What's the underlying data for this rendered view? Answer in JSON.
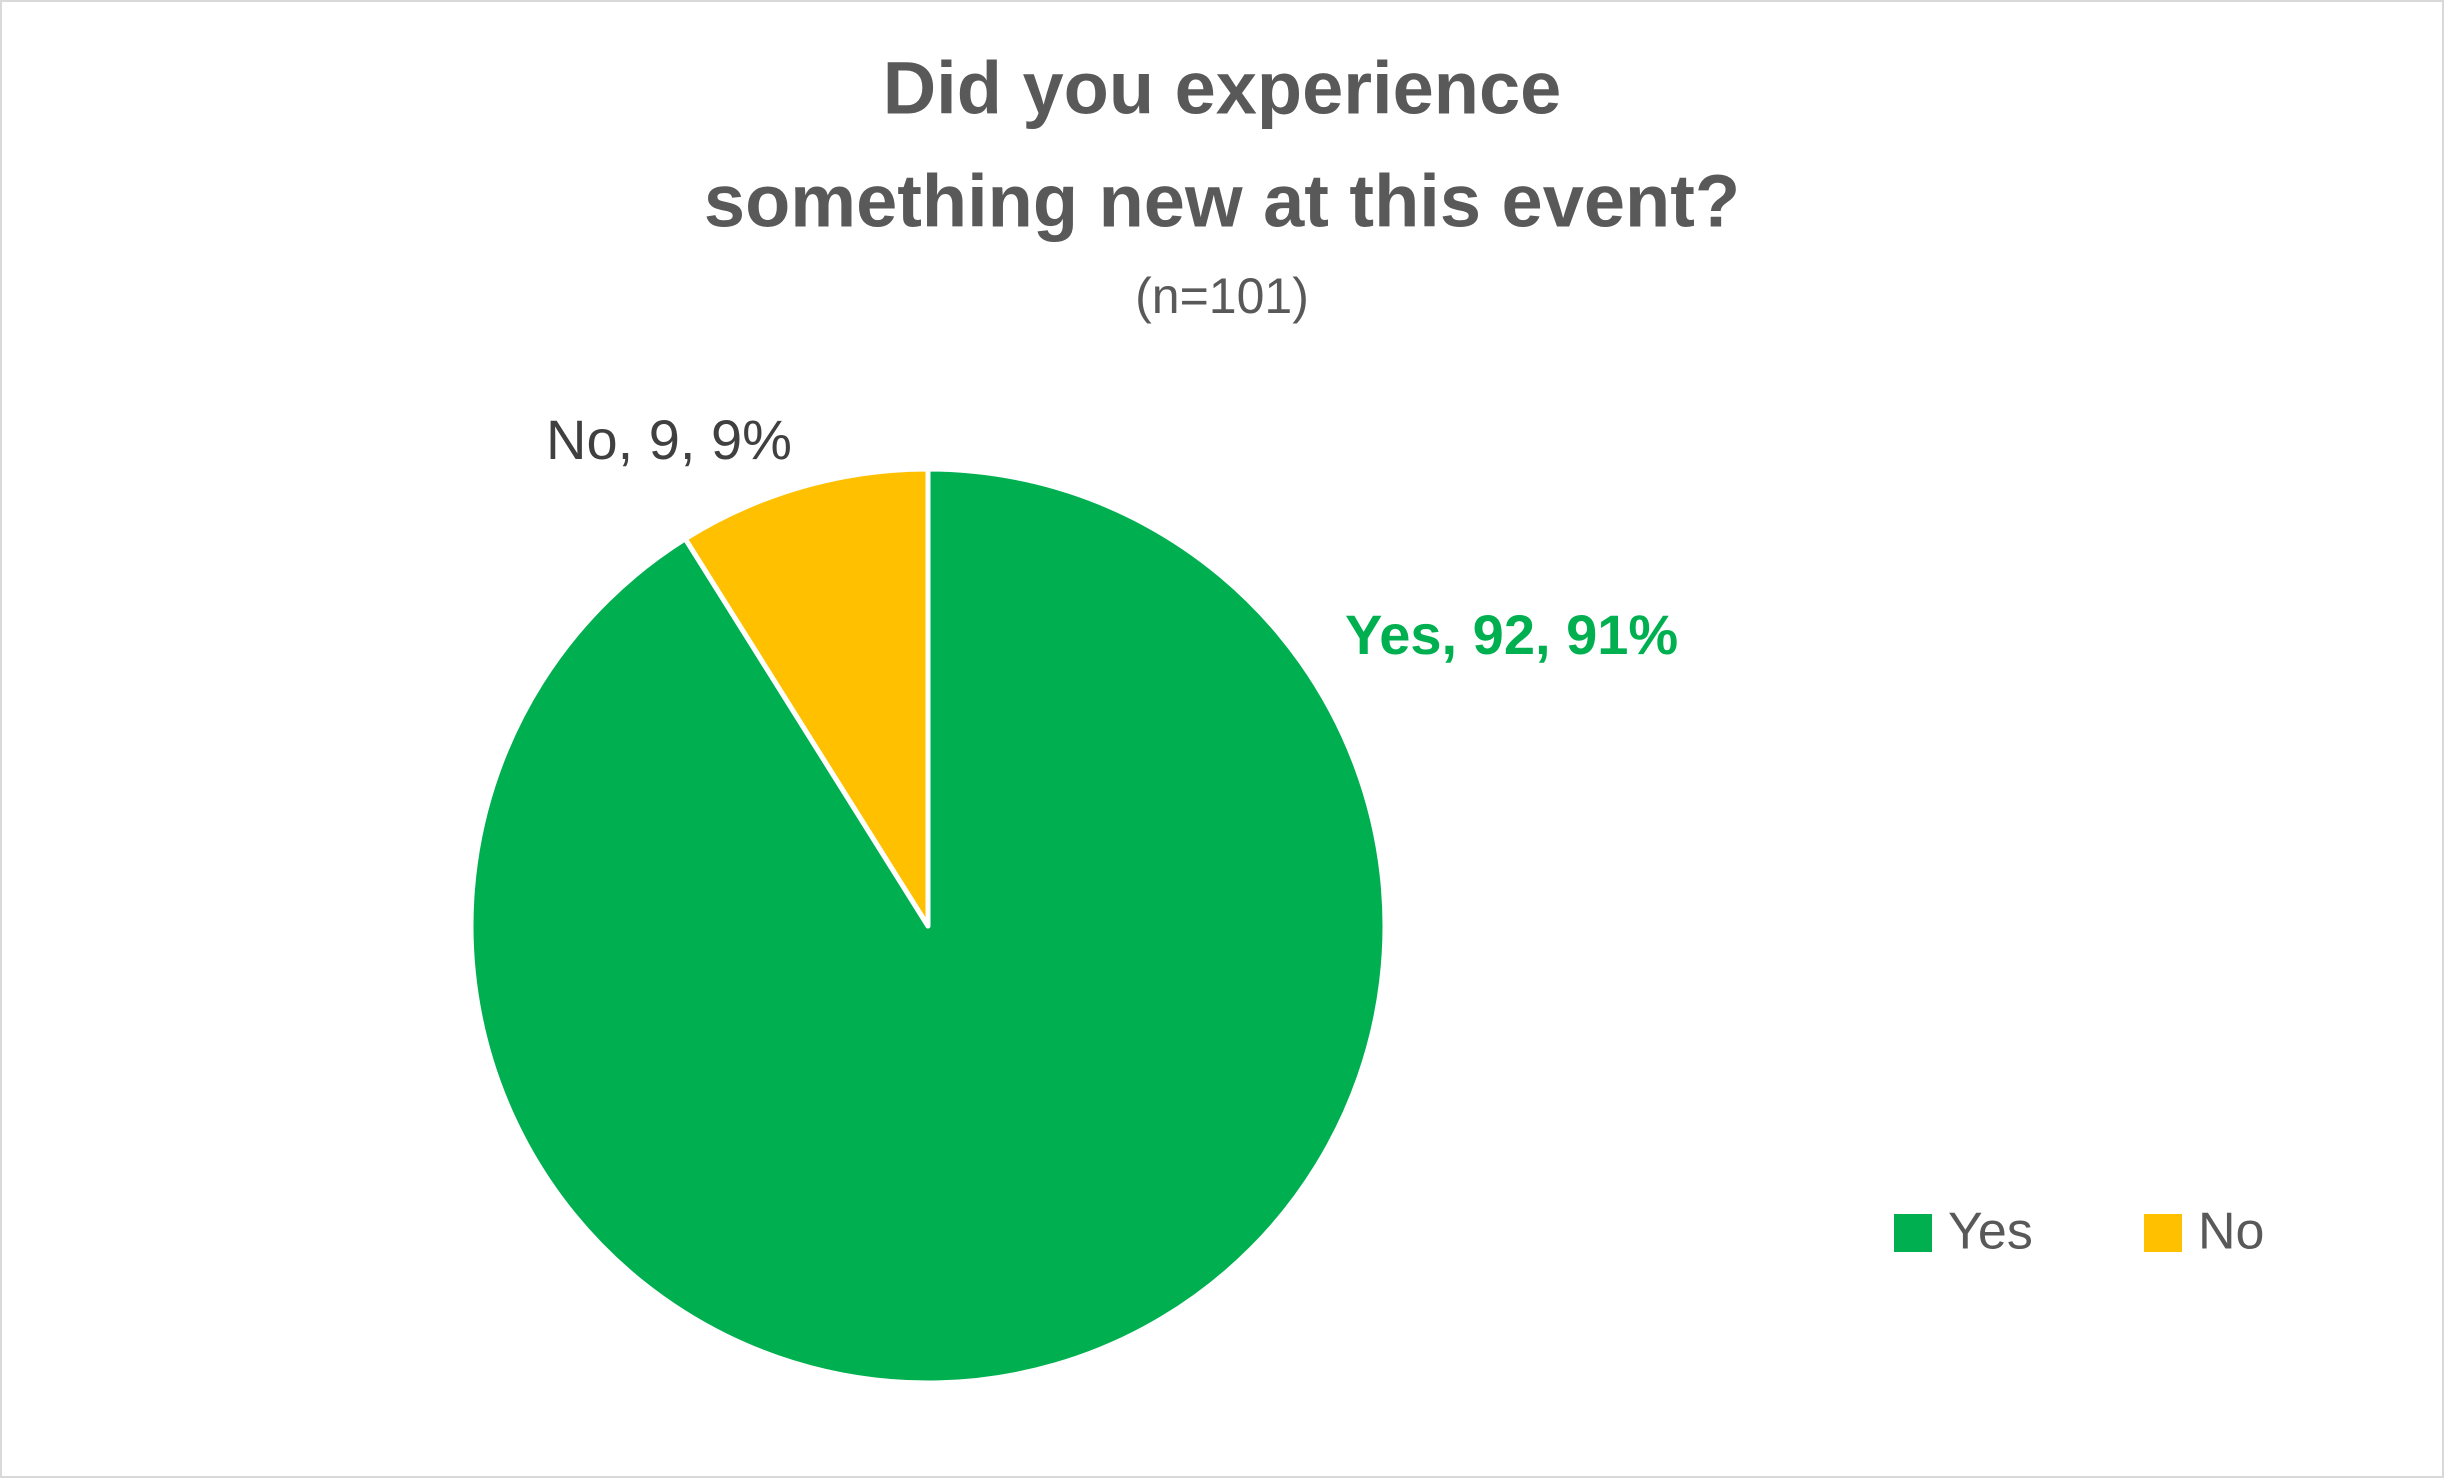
{
  "chart_data": {
    "type": "pie",
    "title": [
      "Did you experience",
      "something new at this event?"
    ],
    "subtitle": "(n=101)",
    "categories": [
      "Yes",
      "No"
    ],
    "values": [
      92,
      9
    ],
    "value_labels": [
      "Yes, 92, 91%",
      "No, 9, 9%"
    ],
    "colors": [
      "#00b050",
      "#ffc000"
    ],
    "legend": "bottom-right"
  }
}
